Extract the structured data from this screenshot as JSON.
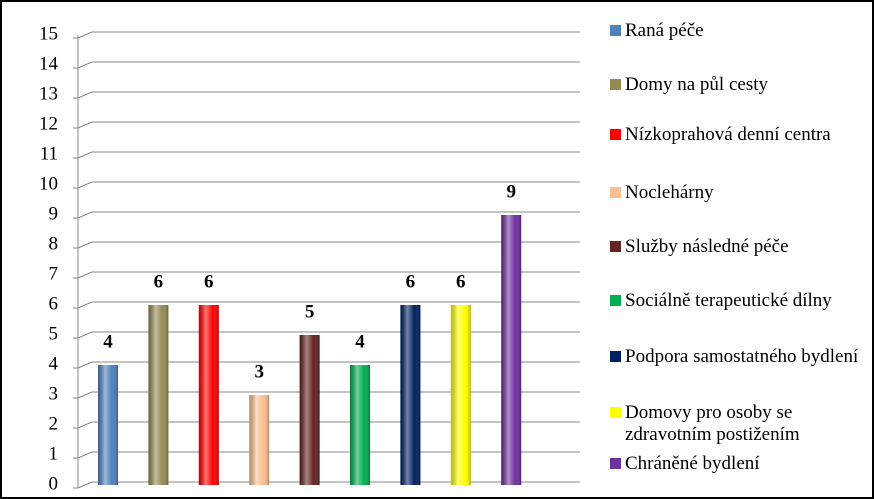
{
  "chart_data": {
    "type": "bar",
    "series": [
      {
        "name": "Raná péče",
        "color": "#4f81bd",
        "values": [
          4
        ]
      },
      {
        "name": "Domy na půl cesty",
        "color": "#948a54",
        "values": [
          6
        ]
      },
      {
        "name": "Nízkoprahová denní centra",
        "color": "#ff0000",
        "values": [
          6
        ]
      },
      {
        "name": "Noclehárny",
        "color": "#fac090",
        "values": [
          3
        ]
      },
      {
        "name": "Služby následné péče",
        "color": "#632423",
        "values": [
          5
        ]
      },
      {
        "name": "Sociálně terapeutické dílny",
        "color": "#00b050",
        "values": [
          4
        ]
      },
      {
        "name": "Podpora samostatného bydlení",
        "color": "#002060",
        "values": [
          6
        ]
      },
      {
        "name": "Domovy pro osoby se zdravotním postižením",
        "color": "#ffff00",
        "values": [
          6
        ]
      },
      {
        "name": "Chráněné bydlení",
        "color": "#7030a0",
        "values": [
          9
        ]
      }
    ],
    "ylim": [
      0,
      15
    ],
    "yticks": [
      0,
      1,
      2,
      3,
      4,
      5,
      6,
      7,
      8,
      9,
      10,
      11,
      12,
      13,
      14,
      15
    ],
    "grid": true,
    "legend": "right"
  }
}
